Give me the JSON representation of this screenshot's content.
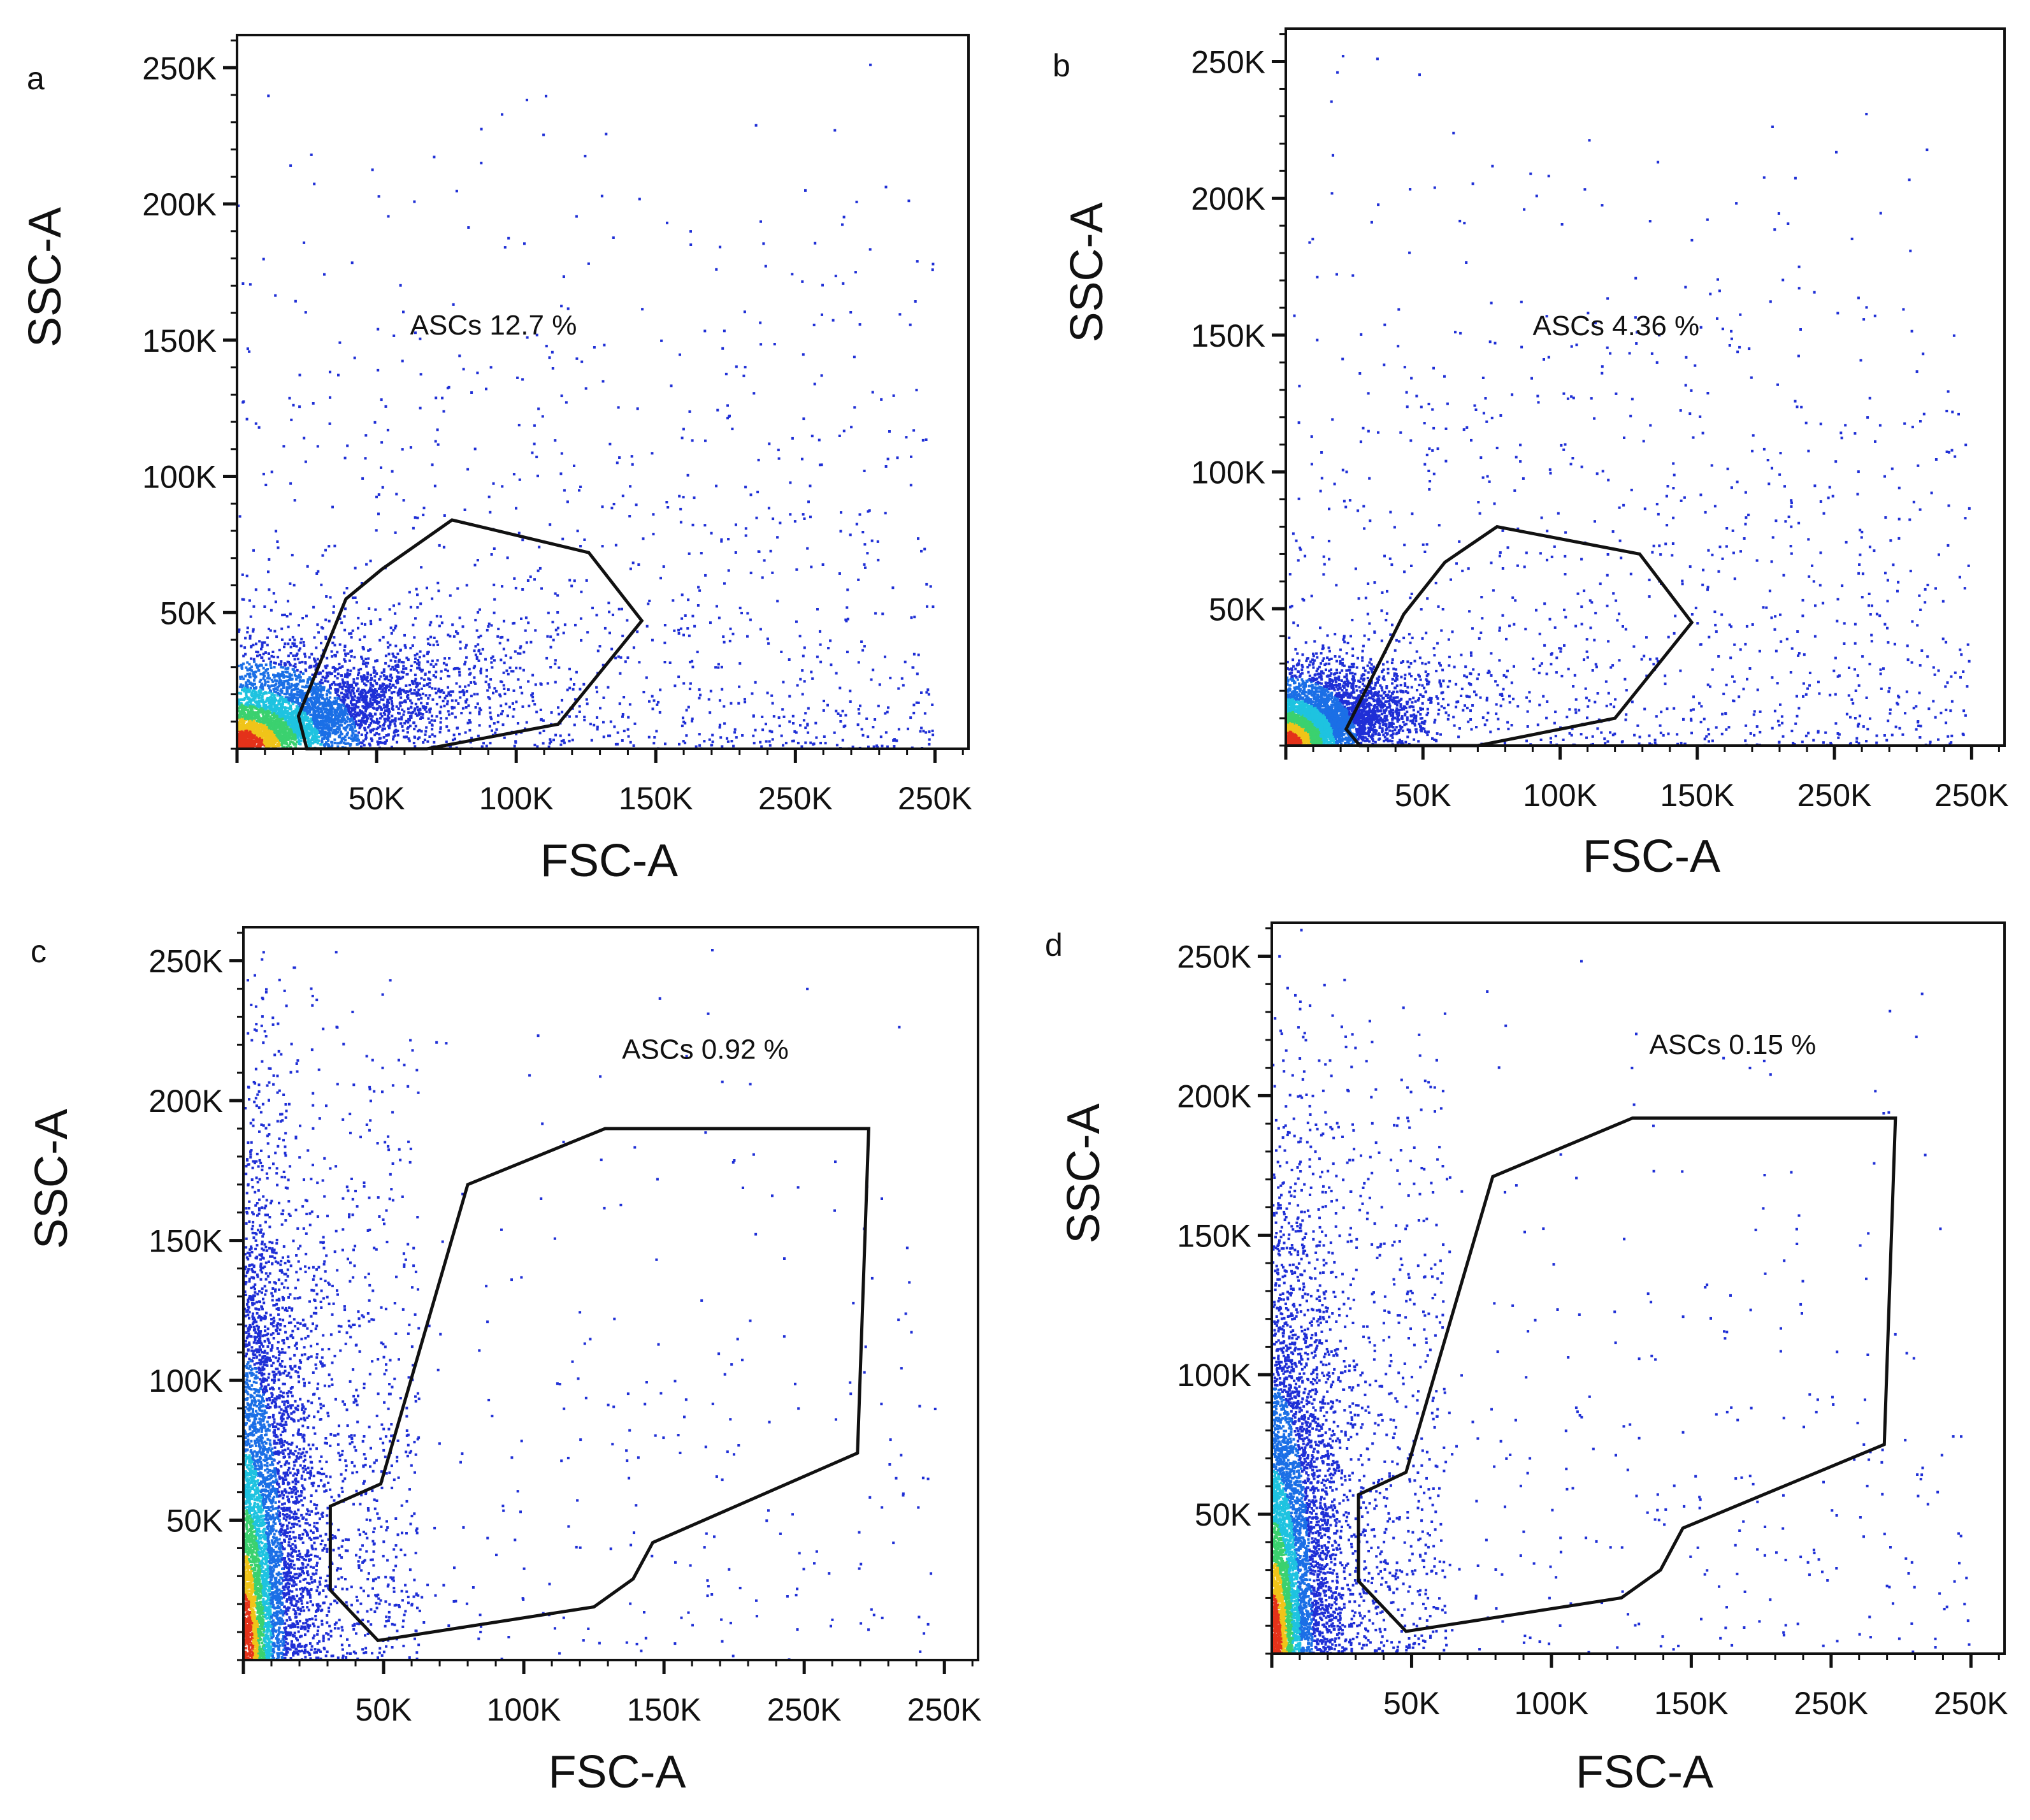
{
  "chart_data": [
    {
      "type": "scatter",
      "panel": "a",
      "xlabel": "FSC-A",
      "ylabel": "SSC-A",
      "xticks": [
        "50K",
        "100K",
        "150K",
        "250K",
        "250K"
      ],
      "yticks": [
        "50K",
        "100K",
        "150K",
        "200K",
        "250K"
      ],
      "xlim": [
        0,
        262000
      ],
      "ylim": [
        0,
        262000
      ],
      "gate": {
        "label": "ASCs 12.7 %",
        "vertices": [
          [
            22000,
            12000
          ],
          [
            39000,
            55000
          ],
          [
            52000,
            66000
          ],
          [
            77000,
            84000
          ],
          [
            126000,
            72000
          ],
          [
            145000,
            47000
          ],
          [
            115000,
            9000
          ],
          [
            68000,
            0
          ],
          [
            25000,
            0
          ]
        ]
      },
      "density": {
        "spread_x": 34000,
        "spread_y": 26000,
        "tail_points": 2200
      }
    },
    {
      "type": "scatter",
      "panel": "b",
      "xlabel": "FSC-A",
      "ylabel": "SSC-A",
      "xticks": [
        "50K",
        "100K",
        "150K",
        "250K",
        "250K"
      ],
      "yticks": [
        "50K",
        "100K",
        "150K",
        "200K",
        "250K"
      ],
      "xlim": [
        0,
        262000
      ],
      "ylim": [
        0,
        262000
      ],
      "gate": {
        "label": "ASCs 4.36 %",
        "vertices": [
          [
            22000,
            6000
          ],
          [
            43000,
            48000
          ],
          [
            58000,
            67000
          ],
          [
            77000,
            80000
          ],
          [
            129000,
            70000
          ],
          [
            148000,
            45000
          ],
          [
            120000,
            10000
          ],
          [
            70000,
            0
          ],
          [
            27000,
            0
          ]
        ]
      },
      "density": {
        "spread_x": 20000,
        "spread_y": 20000,
        "tail_points": 700
      }
    },
    {
      "type": "scatter",
      "panel": "c",
      "xlabel": "FSC-A",
      "ylabel": "SSC-A",
      "xticks": [
        "50K",
        "100K",
        "150K",
        "250K",
        "250K"
      ],
      "yticks": [
        "50K",
        "100K",
        "150K",
        "200K",
        "250K"
      ],
      "xlim": [
        0,
        262000
      ],
      "ylim": [
        0,
        262000
      ],
      "gate": {
        "label": "ASCs 0.92 %",
        "vertices": [
          [
            31000,
            55000
          ],
          [
            49000,
            63000
          ],
          [
            80000,
            170000
          ],
          [
            129000,
            190000
          ],
          [
            223000,
            190000
          ],
          [
            219000,
            74000
          ],
          [
            146000,
            42000
          ],
          [
            139000,
            29000
          ],
          [
            125000,
            19000
          ],
          [
            48000,
            7000
          ],
          [
            31000,
            25000
          ]
        ]
      },
      "density": {
        "spread_x": 11000,
        "spread_y": 85000,
        "tail_points": 1500
      }
    },
    {
      "type": "scatter",
      "panel": "d",
      "xlabel": "FSC-A",
      "ylabel": "SSC-A",
      "xticks": [
        "50K",
        "100K",
        "150K",
        "250K",
        "250K"
      ],
      "yticks": [
        "50K",
        "100K",
        "150K",
        "200K",
        "250K"
      ],
      "xlim": [
        0,
        262000
      ],
      "ylim": [
        0,
        262000
      ],
      "gate": {
        "label": "ASCs 0.15 %",
        "vertices": [
          [
            31000,
            57000
          ],
          [
            48000,
            65000
          ],
          [
            79000,
            171000
          ],
          [
            129000,
            192000
          ],
          [
            223000,
            192000
          ],
          [
            219000,
            75000
          ],
          [
            147000,
            45000
          ],
          [
            139000,
            30000
          ],
          [
            125000,
            20000
          ],
          [
            48000,
            8000
          ],
          [
            31000,
            26000
          ]
        ]
      },
      "density": {
        "spread_x": 11000,
        "spread_y": 75000,
        "tail_points": 1100
      }
    }
  ]
}
